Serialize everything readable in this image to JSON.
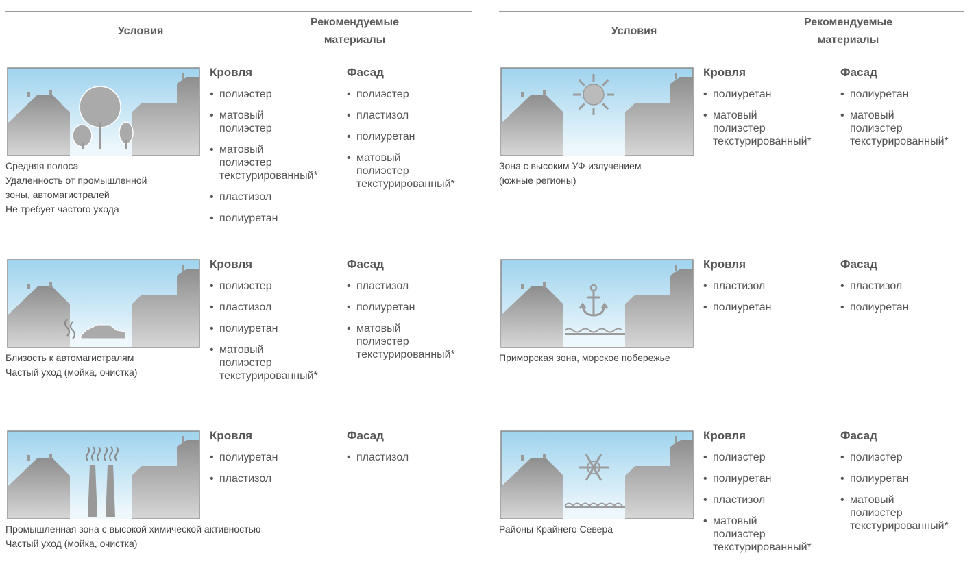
{
  "tables": [
    {
      "header": {
        "conditions": "Условия",
        "materials": "Рекомендуемые материалы"
      },
      "rows": [
        {
          "conditions": [
            "Средняя полоса",
            "Удаленность от промышленной",
            "зоны, автомагистралей",
            "Не требует частого ухода"
          ],
          "roof": {
            "title": "Кровля",
            "items": [
              "полиэстер",
              "матовый полиэстер",
              "матовый полиэстер текстурированный*",
              "пластизол",
              "полиуретан"
            ]
          },
          "facade": {
            "title": "Фасад",
            "items": [
              "полиэстер",
              "пластизол",
              "полиуретан",
              "матовый полиэстер текстурированный*"
            ]
          }
        },
        {
          "conditions": [
            "Близость к автомагистралям",
            "Частый уход (мойка, очистка)"
          ],
          "roof": {
            "title": "Кровля",
            "items": [
              "полиэстер",
              "пластизол",
              "полиуретан",
              "матовый полиэстер текстурированный*"
            ]
          },
          "facade": {
            "title": "Фасад",
            "items": [
              "пластизол",
              "полиуретан",
              "матовый полиэстер текстурированный*"
            ]
          }
        },
        {
          "conditions": [
            "Промышленная зона с высокой химической активностью",
            "Частый уход (мойка, очистка)"
          ],
          "roof": {
            "title": "Кровля",
            "items": [
              "полиуретан",
              "пластизол"
            ]
          },
          "facade": {
            "title": "Фасад",
            "items": [
              "пластизол"
            ]
          }
        }
      ]
    },
    {
      "header": {
        "conditions": "Условия",
        "materials": "Рекомендуемые материалы"
      },
      "rows": [
        {
          "conditions": [
            "Зона с высоким УФ-излучением",
            "(южные регионы)"
          ],
          "roof": {
            "title": "Кровля",
            "items": [
              "полиуретан",
              "матовый полиэстер текстурированный*"
            ]
          },
          "facade": {
            "title": "Фасад",
            "items": [
              "полиуретан",
              "матовый полиэстер текстурированный*"
            ]
          }
        },
        {
          "conditions": [
            "Приморская зона, морское побережье"
          ],
          "roof": {
            "title": "Кровля",
            "items": [
              "пластизол",
              "полиуретан"
            ]
          },
          "facade": {
            "title": "Фасад",
            "items": [
              "пластизол",
              "полиуретан"
            ]
          }
        },
        {
          "conditions": [
            "Районы Крайнего Севера"
          ],
          "roof": {
            "title": "Кровля",
            "items": [
              "полиэстер",
              "полиуретан",
              "пластизол",
              "матовый полиэстер текстурированный*"
            ]
          },
          "facade": {
            "title": "Фасад",
            "items": [
              "полиэстер",
              "полиуретан",
              "матовый полиэстер текстурированный*"
            ]
          }
        }
      ]
    }
  ]
}
